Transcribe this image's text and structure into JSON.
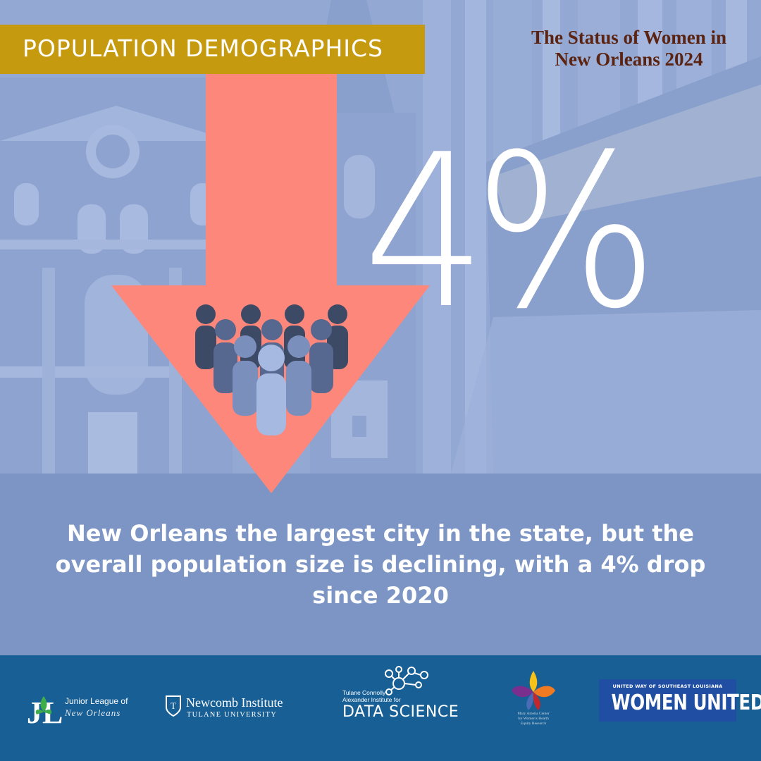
{
  "header": {
    "section_label": "POPULATION DEMOGRAPHICS",
    "report_title": "The Status of Women in New Orleans 2024"
  },
  "stat": {
    "value": "4%"
  },
  "caption": {
    "text": "New Orleans the largest city in the state, but the overall population size is declining, with a 4% drop since 2020"
  },
  "colors": {
    "banner": "#c69a0e",
    "arrow": "#fd877b",
    "footer": "#175f95",
    "background": "#7d95c4",
    "title": "#5b2311"
  },
  "icons": {
    "arrow": "down-arrow-icon",
    "people": "people-group-icon"
  },
  "footer": {
    "logos": [
      {
        "name": "Junior League of New Orleans",
        "line1": "Junior League of",
        "line2": "New Orleans"
      },
      {
        "name": "Newcomb Institute",
        "line1": "Newcomb Institute",
        "line2": "TULANE UNIVERSITY"
      },
      {
        "name": "Data Science",
        "line1": "Tulane Connolly",
        "line2": "Alexander Institute for",
        "line3": "DATA SCIENCE"
      },
      {
        "name": "Mary Amelia Center",
        "line1": "Mary Amelia Center",
        "line2": "for Women's Health",
        "line3": "Equity Research"
      },
      {
        "name": "Women United",
        "line1": "UNITED WAY OF SOUTHEAST LOUISIANA",
        "line2": "WOMEN UNITED"
      }
    ]
  }
}
